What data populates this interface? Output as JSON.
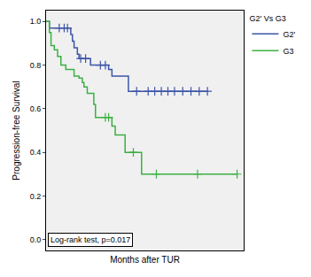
{
  "chart_data": {
    "type": "line",
    "line_style": "step",
    "marker": "cross",
    "x_label": "Months after TUR",
    "y_label": "Progression-free Survival",
    "legend_title": "G2' Vs G3",
    "legend": "right",
    "annotations": [
      "Log-rank test, p=0.017"
    ],
    "grid": false,
    "tick_labels": "y",
    "xlim": [
      0,
      120
    ],
    "ylim": [
      -0.05,
      1.05
    ],
    "yticks": [
      {
        "value": 0,
        "label": "0.0"
      },
      {
        "value": 0.2,
        "label": "0.2"
      },
      {
        "value": 0.4,
        "label": "0.4"
      },
      {
        "value": 0.6,
        "label": "0.6"
      },
      {
        "value": 0.8,
        "label": "0.8"
      },
      {
        "value": 1,
        "label": "1.0"
      }
    ],
    "series": [
      {
        "name": "G2'",
        "color": "#3d55a8",
        "x": [
          0,
          2,
          15,
          16,
          17,
          19,
          20,
          27,
          38,
          40,
          50,
          98
        ],
        "values": [
          1.0,
          0.97,
          0.94,
          0.91,
          0.88,
          0.85,
          0.83,
          0.8,
          0.78,
          0.75,
          0.68,
          0.68
        ],
        "censored_x": [
          8,
          11,
          13,
          21,
          24,
          33,
          36,
          55,
          62,
          66,
          70,
          74,
          78,
          83,
          88,
          93,
          98
        ],
        "censored_values": [
          0.97,
          0.97,
          0.97,
          0.83,
          0.83,
          0.8,
          0.8,
          0.68,
          0.68,
          0.68,
          0.68,
          0.68,
          0.68,
          0.68,
          0.68,
          0.68,
          0.68
        ]
      },
      {
        "name": "G3",
        "color": "#3cb043",
        "x": [
          0,
          2,
          3,
          5,
          7,
          9,
          12,
          17,
          20,
          22,
          23,
          25,
          29,
          30,
          40,
          42,
          48,
          58,
          116
        ],
        "values": [
          1.0,
          0.95,
          0.89,
          0.87,
          0.84,
          0.8,
          0.78,
          0.75,
          0.74,
          0.72,
          0.7,
          0.67,
          0.62,
          0.56,
          0.52,
          0.48,
          0.4,
          0.3,
          0.3
        ],
        "censored_x": [
          36,
          38,
          53,
          67,
          92,
          116
        ],
        "censored_values": [
          0.56,
          0.56,
          0.4,
          0.3,
          0.3,
          0.3
        ]
      }
    ]
  }
}
